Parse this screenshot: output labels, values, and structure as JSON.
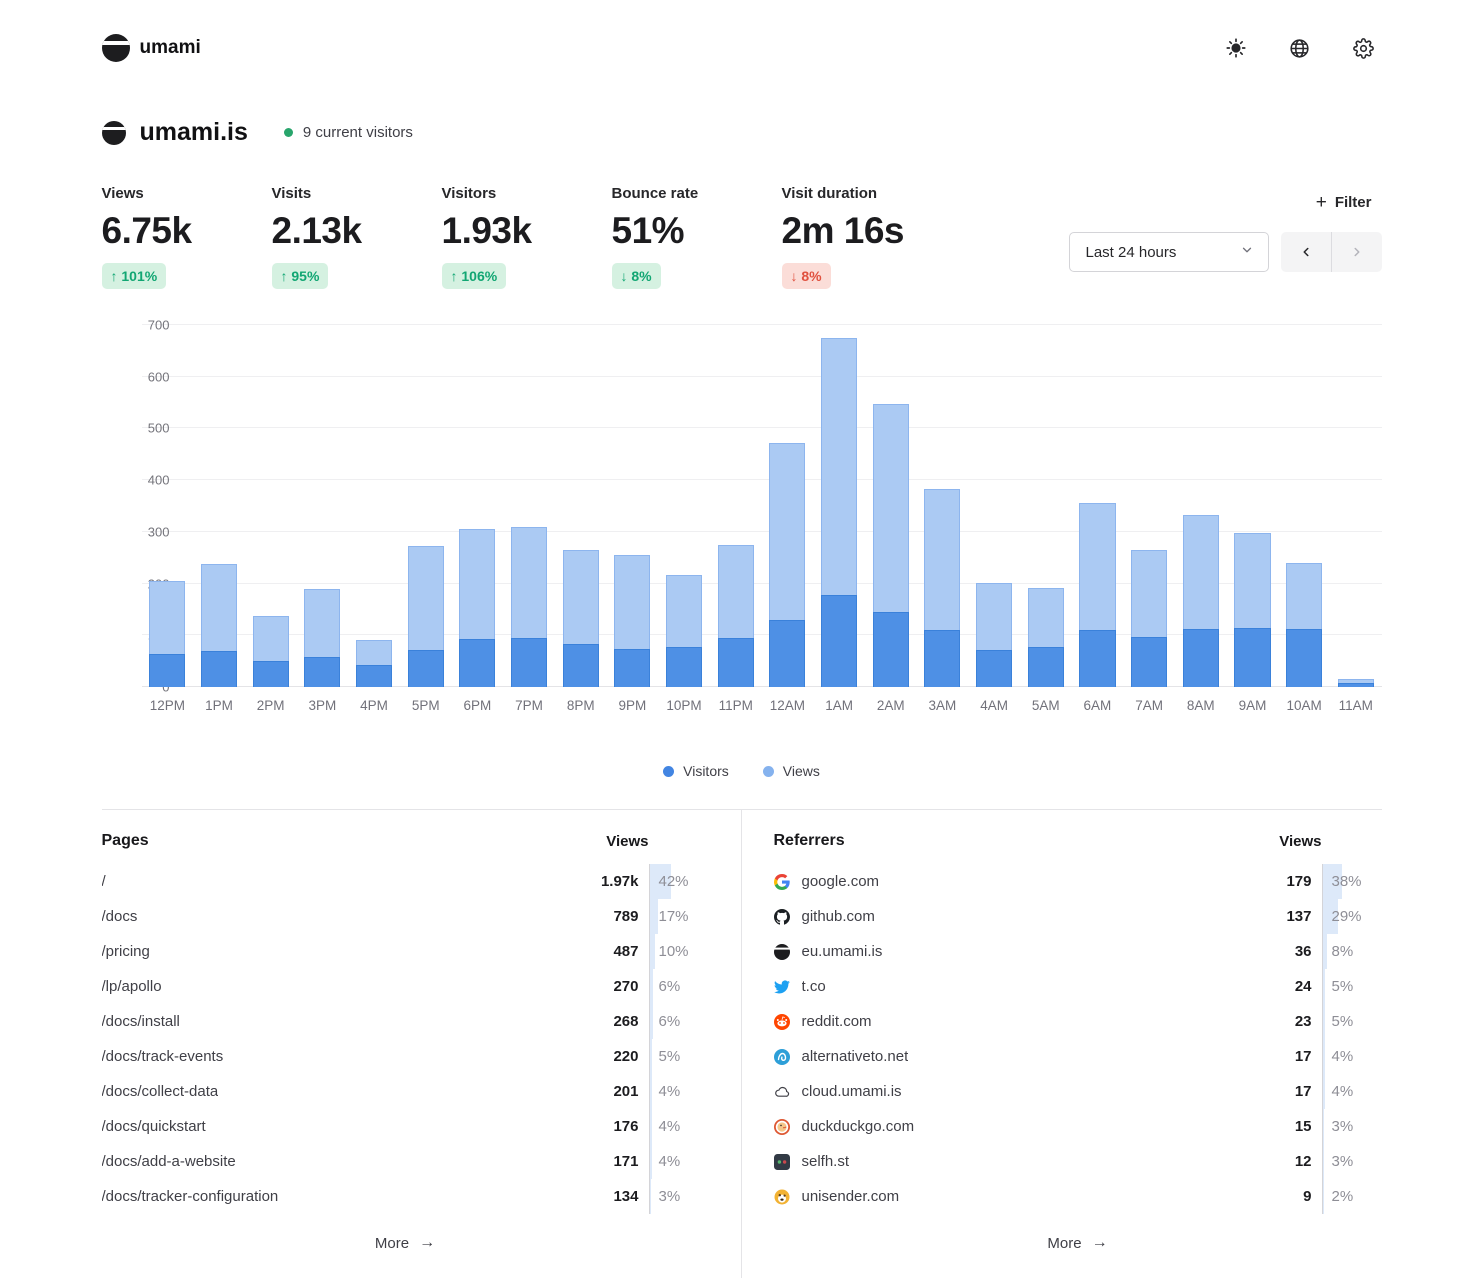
{
  "brand": {
    "name": "umami"
  },
  "appbar_icons": [
    {
      "name": "theme-toggle",
      "icon": "sun-icon"
    },
    {
      "name": "language",
      "icon": "globe-icon"
    },
    {
      "name": "settings",
      "icon": "gear-icon"
    }
  ],
  "site": {
    "name": "umami.is",
    "live_status": "9 current visitors"
  },
  "metrics": [
    {
      "label": "Views",
      "value": "6.75k",
      "change": "101%",
      "direction": "up",
      "tone": "positive"
    },
    {
      "label": "Visits",
      "value": "2.13k",
      "change": "95%",
      "direction": "up",
      "tone": "positive"
    },
    {
      "label": "Visitors",
      "value": "1.93k",
      "change": "106%",
      "direction": "up",
      "tone": "positive"
    },
    {
      "label": "Bounce rate",
      "value": "51%",
      "change": "8%",
      "direction": "down",
      "tone": "positive"
    },
    {
      "label": "Visit duration",
      "value": "2m 16s",
      "change": "8%",
      "direction": "down",
      "tone": "negative"
    }
  ],
  "controls": {
    "filter_label": "Filter",
    "date_range": "Last 24 hours"
  },
  "chart_data": {
    "type": "bar",
    "categories": [
      "12PM",
      "1PM",
      "2PM",
      "3PM",
      "4PM",
      "5PM",
      "6PM",
      "7PM",
      "8PM",
      "9PM",
      "10PM",
      "11PM",
      "12AM",
      "1AM",
      "2AM",
      "3AM",
      "4AM",
      "5AM",
      "6AM",
      "7AM",
      "8AM",
      "9AM",
      "10AM",
      "11AM"
    ],
    "series": [
      {
        "name": "Views",
        "values": [
          205,
          237,
          137,
          189,
          91,
          273,
          305,
          310,
          265,
          256,
          217,
          275,
          472,
          675,
          547,
          383,
          202,
          192,
          355,
          265,
          332,
          298,
          239,
          16
        ]
      },
      {
        "name": "Visitors",
        "values": [
          64,
          70,
          51,
          58,
          43,
          71,
          93,
          95,
          83,
          73,
          78,
          95,
          130,
          177,
          145,
          111,
          72,
          78,
          111,
          97,
          112,
          114,
          112,
          8
        ]
      }
    ],
    "ylim": [
      0,
      700
    ],
    "yticks": [
      0,
      100,
      200,
      300,
      400,
      500,
      600,
      700
    ],
    "grid": true,
    "legend_position": "bottom",
    "colors": {
      "visitors": "#4e90e5",
      "views": "#abcaf3"
    }
  },
  "legend": [
    {
      "label": "Visitors",
      "color": "#4285e2"
    },
    {
      "label": "Views",
      "color": "#85b2ee"
    }
  ],
  "pages": {
    "title": "Pages",
    "views_header": "Views",
    "more_label": "More",
    "rows": [
      {
        "path": "/",
        "views": "1.97k",
        "pct": "42%",
        "pct_value": 42
      },
      {
        "path": "/docs",
        "views": "789",
        "pct": "17%",
        "pct_value": 17
      },
      {
        "path": "/pricing",
        "views": "487",
        "pct": "10%",
        "pct_value": 10
      },
      {
        "path": "/lp/apollo",
        "views": "270",
        "pct": "6%",
        "pct_value": 6
      },
      {
        "path": "/docs/install",
        "views": "268",
        "pct": "6%",
        "pct_value": 6
      },
      {
        "path": "/docs/track-events",
        "views": "220",
        "pct": "5%",
        "pct_value": 5
      },
      {
        "path": "/docs/collect-data",
        "views": "201",
        "pct": "4%",
        "pct_value": 4
      },
      {
        "path": "/docs/quickstart",
        "views": "176",
        "pct": "4%",
        "pct_value": 4
      },
      {
        "path": "/docs/add-a-website",
        "views": "171",
        "pct": "4%",
        "pct_value": 4
      },
      {
        "path": "/docs/tracker-configuration",
        "views": "134",
        "pct": "3%",
        "pct_value": 3
      }
    ]
  },
  "referrers": {
    "title": "Referrers",
    "views_header": "Views",
    "more_label": "More",
    "rows": [
      {
        "domain": "google.com",
        "icon": "google-icon",
        "views": "179",
        "pct": "38%",
        "pct_value": 38
      },
      {
        "domain": "github.com",
        "icon": "github-icon",
        "views": "137",
        "pct": "29%",
        "pct_value": 29
      },
      {
        "domain": "eu.umami.is",
        "icon": "umami-favicon-icon",
        "views": "36",
        "pct": "8%",
        "pct_value": 8
      },
      {
        "domain": "t.co",
        "icon": "twitter-icon",
        "views": "24",
        "pct": "5%",
        "pct_value": 5
      },
      {
        "domain": "reddit.com",
        "icon": "reddit-icon",
        "views": "23",
        "pct": "5%",
        "pct_value": 5
      },
      {
        "domain": "alternativeto.net",
        "icon": "alternativeto-icon",
        "views": "17",
        "pct": "4%",
        "pct_value": 4
      },
      {
        "domain": "cloud.umami.is",
        "icon": "cloud-icon",
        "views": "17",
        "pct": "4%",
        "pct_value": 4
      },
      {
        "domain": "duckduckgo.com",
        "icon": "duckduckgo-icon",
        "views": "15",
        "pct": "3%",
        "pct_value": 3
      },
      {
        "domain": "selfh.st",
        "icon": "selfhst-icon",
        "views": "12",
        "pct": "3%",
        "pct_value": 3
      },
      {
        "domain": "unisender.com",
        "icon": "unisender-icon",
        "views": "9",
        "pct": "2%",
        "pct_value": 2
      }
    ]
  }
}
